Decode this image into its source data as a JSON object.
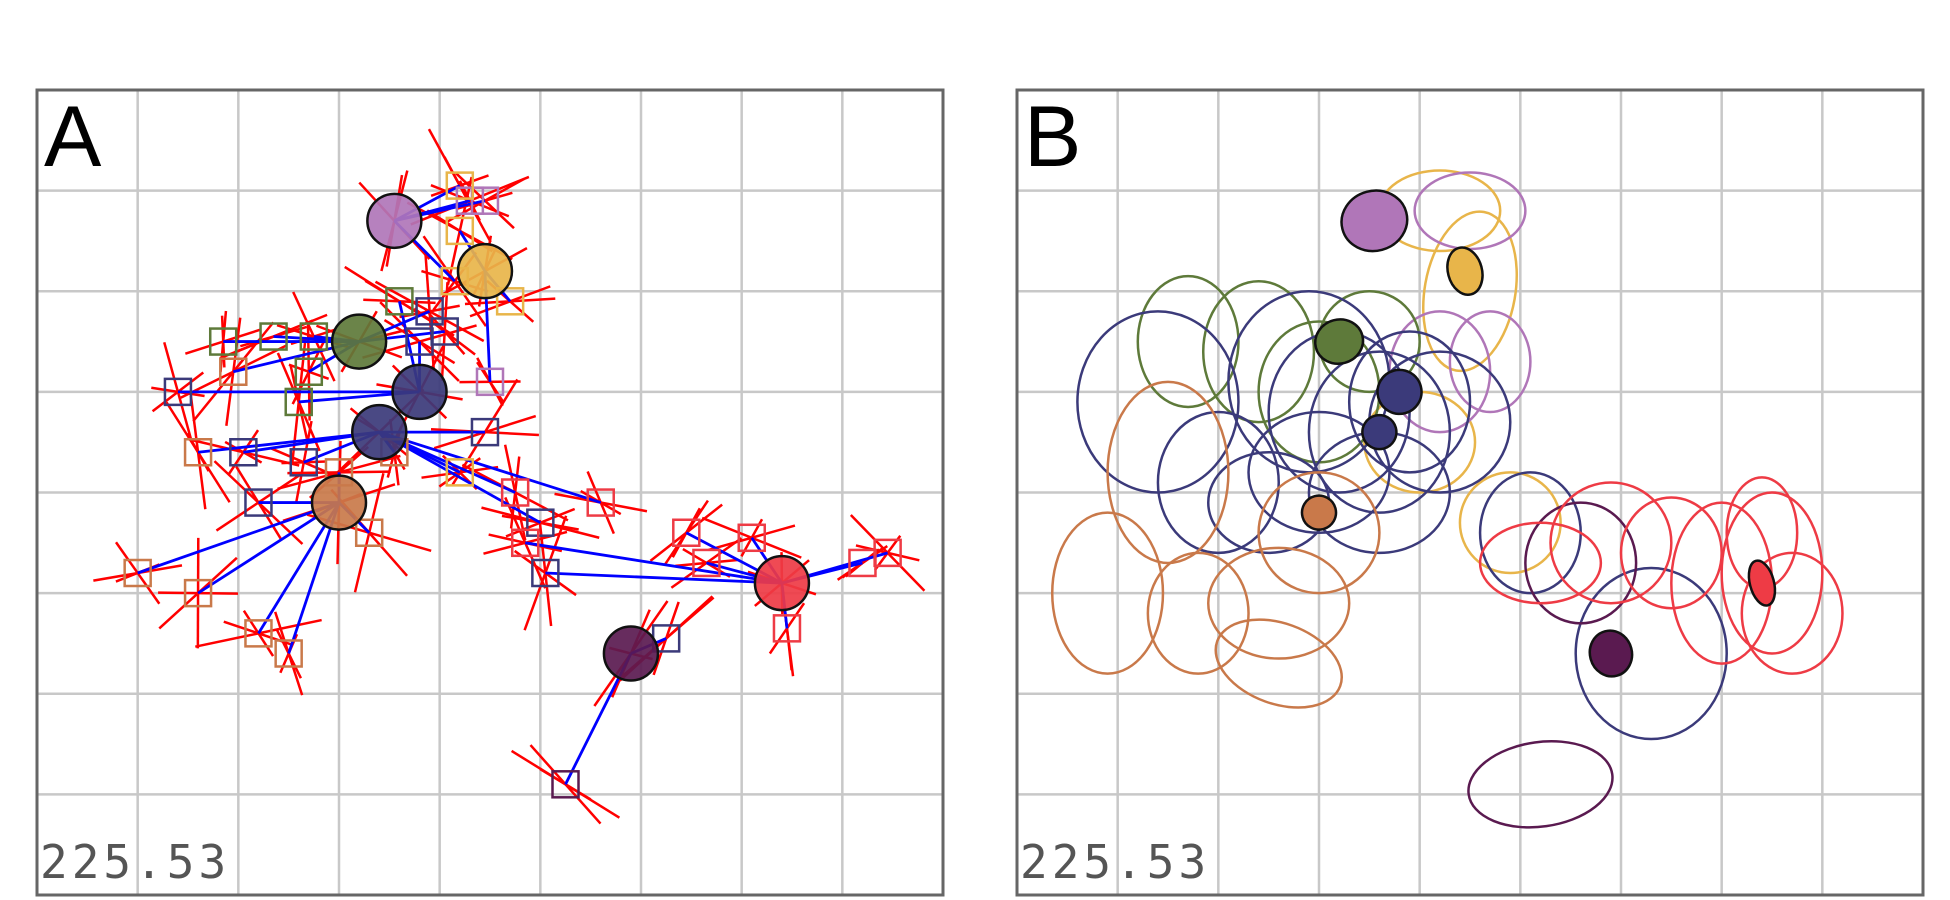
{
  "chart_data": [
    {
      "type": "scatter",
      "panel_label": "A",
      "stat_value": "225.53",
      "grid": true,
      "xlim": [
        0,
        9
      ],
      "ylim": [
        0,
        8
      ],
      "centroids": [
        {
          "x": 4.45,
          "y": 6.2,
          "color": "#e8b54a"
        },
        {
          "x": 3.55,
          "y": 6.7,
          "color": "#b076b8"
        },
        {
          "x": 3.2,
          "y": 5.5,
          "color": "#5e7a3a"
        },
        {
          "x": 3.8,
          "y": 5.0,
          "color": "#3b3a7a"
        },
        {
          "x": 3.4,
          "y": 4.6,
          "color": "#3b3a7a"
        },
        {
          "x": 3.0,
          "y": 3.9,
          "color": "#c9794a"
        },
        {
          "x": 7.4,
          "y": 3.1,
          "color": "#ee3b45"
        },
        {
          "x": 5.9,
          "y": 2.4,
          "color": "#5a1a50"
        }
      ],
      "samples": [
        {
          "x": 4.7,
          "y": 5.9,
          "color": "#e8b54a",
          "c": 0
        },
        {
          "x": 4.2,
          "y": 6.6,
          "color": "#e8b54a",
          "c": 0
        },
        {
          "x": 4.5,
          "y": 5.1,
          "color": "#b076b8",
          "c": 0
        },
        {
          "x": 4.3,
          "y": 6.9,
          "color": "#b076b8",
          "c": 1
        },
        {
          "x": 4.45,
          "y": 6.9,
          "color": "#b076b8",
          "c": 1
        },
        {
          "x": 4.2,
          "y": 7.05,
          "color": "#e8b54a",
          "c": 1
        },
        {
          "x": 4.15,
          "y": 6.1,
          "color": "#e8b54a",
          "c": 1
        },
        {
          "x": 3.9,
          "y": 5.8,
          "color": "#3b3a7a",
          "c": 2
        },
        {
          "x": 4.05,
          "y": 5.6,
          "color": "#3b3a7a",
          "c": 2
        },
        {
          "x": 2.75,
          "y": 5.55,
          "color": "#5e7a3a",
          "c": 2
        },
        {
          "x": 2.35,
          "y": 5.55,
          "color": "#5e7a3a",
          "c": 2
        },
        {
          "x": 1.85,
          "y": 5.5,
          "color": "#5e7a3a",
          "c": 2
        },
        {
          "x": 1.95,
          "y": 5.2,
          "color": "#c9794a",
          "c": 2
        },
        {
          "x": 2.7,
          "y": 5.2,
          "color": "#5e7a3a",
          "c": 2
        },
        {
          "x": 2.6,
          "y": 4.9,
          "color": "#5e7a3a",
          "c": 3
        },
        {
          "x": 3.6,
          "y": 5.9,
          "color": "#5e7a3a",
          "c": 3
        },
        {
          "x": 3.8,
          "y": 5.5,
          "color": "#3b3a7a",
          "c": 3
        },
        {
          "x": 1.4,
          "y": 5.0,
          "color": "#3b3a7a",
          "c": 3
        },
        {
          "x": 1.6,
          "y": 4.4,
          "color": "#c9794a",
          "c": 4
        },
        {
          "x": 2.05,
          "y": 4.4,
          "color": "#3b3a7a",
          "c": 4
        },
        {
          "x": 2.65,
          "y": 4.3,
          "color": "#3b3a7a",
          "c": 4
        },
        {
          "x": 3.55,
          "y": 4.4,
          "color": "#c9794a",
          "c": 4
        },
        {
          "x": 4.2,
          "y": 4.2,
          "color": "#e8b54a",
          "c": 4
        },
        {
          "x": 4.45,
          "y": 4.6,
          "color": "#3b3a7a",
          "c": 4
        },
        {
          "x": 4.75,
          "y": 4.0,
          "color": "#ee3b45",
          "c": 4
        },
        {
          "x": 5.6,
          "y": 3.9,
          "color": "#ee3b45",
          "c": 4
        },
        {
          "x": 5.0,
          "y": 3.7,
          "color": "#3b3a7a",
          "c": 4
        },
        {
          "x": 2.2,
          "y": 3.9,
          "color": "#3b3a7a",
          "c": 5
        },
        {
          "x": 3.0,
          "y": 4.2,
          "color": "#c9794a",
          "c": 5
        },
        {
          "x": 3.3,
          "y": 3.6,
          "color": "#c9794a",
          "c": 5
        },
        {
          "x": 1.0,
          "y": 3.2,
          "color": "#c9794a",
          "c": 5
        },
        {
          "x": 1.6,
          "y": 3.0,
          "color": "#c9794a",
          "c": 5
        },
        {
          "x": 2.2,
          "y": 2.6,
          "color": "#c9794a",
          "c": 5
        },
        {
          "x": 2.5,
          "y": 2.4,
          "color": "#c9794a",
          "c": 5
        },
        {
          "x": 4.85,
          "y": 3.5,
          "color": "#ee3b45",
          "c": 6
        },
        {
          "x": 5.05,
          "y": 3.2,
          "color": "#3b3a7a",
          "c": 6
        },
        {
          "x": 6.45,
          "y": 3.6,
          "color": "#ee3b45",
          "c": 6
        },
        {
          "x": 6.65,
          "y": 3.3,
          "color": "#ee3b45",
          "c": 6
        },
        {
          "x": 7.1,
          "y": 3.55,
          "color": "#ee3b45",
          "c": 6
        },
        {
          "x": 8.2,
          "y": 3.3,
          "color": "#ee3b45",
          "c": 6
        },
        {
          "x": 8.45,
          "y": 3.4,
          "color": "#ee3b45",
          "c": 6
        },
        {
          "x": 7.45,
          "y": 2.65,
          "color": "#ee3b45",
          "c": 6
        },
        {
          "x": 6.25,
          "y": 2.55,
          "color": "#3b3a7a",
          "c": 7
        },
        {
          "x": 5.25,
          "y": 1.1,
          "color": "#5a1a50",
          "c": 7
        }
      ]
    },
    {
      "type": "scatter",
      "panel_label": "B",
      "stat_value": "225.53",
      "grid": true,
      "xlim": [
        0,
        9
      ],
      "ylim": [
        0,
        8
      ],
      "centroids": [
        {
          "x": 4.45,
          "y": 6.2,
          "color": "#e8b54a"
        },
        {
          "x": 3.55,
          "y": 6.7,
          "color": "#b076b8"
        },
        {
          "x": 3.2,
          "y": 5.5,
          "color": "#5e7a3a"
        },
        {
          "x": 3.8,
          "y": 5.0,
          "color": "#3b3a7a"
        },
        {
          "x": 3.6,
          "y": 4.6,
          "color": "#3b3a7a"
        },
        {
          "x": 3.0,
          "y": 3.8,
          "color": "#c9794a"
        },
        {
          "x": 7.4,
          "y": 3.1,
          "color": "#ee3b45"
        },
        {
          "x": 5.9,
          "y": 2.4,
          "color": "#5a1a50"
        }
      ],
      "ellipses": [
        {
          "cx": 4.2,
          "cy": 6.8,
          "rx": 0.6,
          "ry": 0.4,
          "rot": 0,
          "color": "#e8b54a"
        },
        {
          "cx": 4.5,
          "cy": 6.0,
          "rx": 0.45,
          "ry": 0.8,
          "rot": 10,
          "color": "#e8b54a"
        },
        {
          "cx": 4.0,
          "cy": 4.5,
          "rx": 0.55,
          "ry": 0.5,
          "rot": 0,
          "color": "#e8b54a"
        },
        {
          "cx": 4.9,
          "cy": 3.7,
          "rx": 0.5,
          "ry": 0.5,
          "rot": 0,
          "color": "#e8b54a"
        },
        {
          "cx": 4.5,
          "cy": 6.8,
          "rx": 0.55,
          "ry": 0.38,
          "rot": 0,
          "color": "#b076b8"
        },
        {
          "cx": 4.2,
          "cy": 5.2,
          "rx": 0.5,
          "ry": 0.6,
          "rot": 0,
          "color": "#b076b8"
        },
        {
          "cx": 4.7,
          "cy": 5.3,
          "rx": 0.4,
          "ry": 0.5,
          "rot": 0,
          "color": "#b076b8"
        },
        {
          "cx": 1.7,
          "cy": 5.5,
          "rx": 0.5,
          "ry": 0.65,
          "rot": 0,
          "color": "#5e7a3a"
        },
        {
          "cx": 2.4,
          "cy": 5.4,
          "rx": 0.55,
          "ry": 0.7,
          "rot": 0,
          "color": "#5e7a3a"
        },
        {
          "cx": 3.0,
          "cy": 5.0,
          "rx": 0.6,
          "ry": 0.7,
          "rot": 0,
          "color": "#5e7a3a"
        },
        {
          "cx": 3.5,
          "cy": 5.5,
          "rx": 0.5,
          "ry": 0.5,
          "rot": 0,
          "color": "#5e7a3a"
        },
        {
          "cx": 1.4,
          "cy": 4.9,
          "rx": 0.8,
          "ry": 0.9,
          "rot": 0,
          "color": "#3b3a7a"
        },
        {
          "cx": 2.0,
          "cy": 4.1,
          "rx": 0.6,
          "ry": 0.7,
          "rot": 0,
          "color": "#3b3a7a"
        },
        {
          "cx": 2.9,
          "cy": 5.1,
          "rx": 0.8,
          "ry": 0.9,
          "rot": 0,
          "color": "#3b3a7a"
        },
        {
          "cx": 3.2,
          "cy": 4.8,
          "rx": 0.7,
          "ry": 0.8,
          "rot": 0,
          "color": "#3b3a7a"
        },
        {
          "cx": 3.6,
          "cy": 4.6,
          "rx": 0.7,
          "ry": 0.8,
          "rot": 0,
          "color": "#3b3a7a"
        },
        {
          "cx": 3.9,
          "cy": 4.9,
          "rx": 0.6,
          "ry": 0.7,
          "rot": 0,
          "color": "#3b3a7a"
        },
        {
          "cx": 4.2,
          "cy": 4.7,
          "rx": 0.7,
          "ry": 0.7,
          "rot": 0,
          "color": "#3b3a7a"
        },
        {
          "cx": 3.0,
          "cy": 4.2,
          "rx": 0.7,
          "ry": 0.6,
          "rot": 0,
          "color": "#3b3a7a"
        },
        {
          "cx": 3.6,
          "cy": 4.0,
          "rx": 0.7,
          "ry": 0.6,
          "rot": 0,
          "color": "#3b3a7a"
        },
        {
          "cx": 2.5,
          "cy": 3.9,
          "rx": 0.6,
          "ry": 0.5,
          "rot": 0,
          "color": "#3b3a7a"
        },
        {
          "cx": 5.1,
          "cy": 3.6,
          "rx": 0.5,
          "ry": 0.6,
          "rot": 0,
          "color": "#3b3a7a"
        },
        {
          "cx": 6.3,
          "cy": 2.4,
          "rx": 0.75,
          "ry": 0.85,
          "rot": 0,
          "color": "#3b3a7a"
        },
        {
          "cx": 5.6,
          "cy": 3.3,
          "rx": 0.55,
          "ry": 0.6,
          "rot": 0,
          "color": "#5a1a50"
        },
        {
          "cx": 5.2,
          "cy": 1.1,
          "rx": 0.72,
          "ry": 0.42,
          "rot": -8,
          "color": "#5a1a50"
        },
        {
          "cx": 0.9,
          "cy": 3.0,
          "rx": 0.55,
          "ry": 0.8,
          "rot": 0,
          "color": "#c9794a"
        },
        {
          "cx": 1.5,
          "cy": 4.2,
          "rx": 0.6,
          "ry": 0.9,
          "rot": 0,
          "color": "#c9794a"
        },
        {
          "cx": 1.8,
          "cy": 2.8,
          "rx": 0.5,
          "ry": 0.6,
          "rot": 0,
          "color": "#c9794a"
        },
        {
          "cx": 2.6,
          "cy": 2.3,
          "rx": 0.65,
          "ry": 0.4,
          "rot": 20,
          "color": "#c9794a"
        },
        {
          "cx": 2.6,
          "cy": 2.9,
          "rx": 0.7,
          "ry": 0.55,
          "rot": 0,
          "color": "#c9794a"
        },
        {
          "cx": 3.0,
          "cy": 3.6,
          "rx": 0.6,
          "ry": 0.6,
          "rot": 0,
          "color": "#c9794a"
        },
        {
          "cx": 5.2,
          "cy": 3.3,
          "rx": 0.6,
          "ry": 0.4,
          "rot": 0,
          "color": "#ee3b45"
        },
        {
          "cx": 5.9,
          "cy": 3.5,
          "rx": 0.6,
          "ry": 0.6,
          "rot": 0,
          "color": "#ee3b45"
        },
        {
          "cx": 6.5,
          "cy": 3.4,
          "rx": 0.5,
          "ry": 0.55,
          "rot": 0,
          "color": "#ee3b45"
        },
        {
          "cx": 7.0,
          "cy": 3.1,
          "rx": 0.5,
          "ry": 0.8,
          "rot": 0,
          "color": "#ee3b45"
        },
        {
          "cx": 7.5,
          "cy": 3.2,
          "rx": 0.5,
          "ry": 0.8,
          "rot": 0,
          "color": "#ee3b45"
        },
        {
          "cx": 7.7,
          "cy": 2.8,
          "rx": 0.5,
          "ry": 0.6,
          "rot": 0,
          "color": "#ee3b45"
        },
        {
          "cx": 7.4,
          "cy": 3.6,
          "rx": 0.35,
          "ry": 0.55,
          "rot": 0,
          "color": "#ee3b45"
        }
      ]
    }
  ]
}
